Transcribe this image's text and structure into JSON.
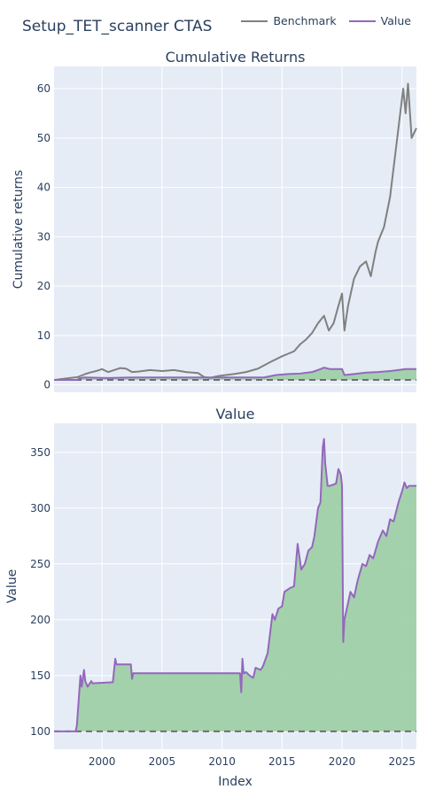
{
  "title": "Setup_TET_scanner CTAS",
  "legend": [
    {
      "name": "Benchmark",
      "color": "#808080"
    },
    {
      "name": "Value",
      "color": "#9467bd"
    }
  ],
  "colors": {
    "plot_bg": "#e5ecf6",
    "grid": "#ffffff",
    "fill": "#9fd0a6",
    "dash": "#6e6e6e"
  },
  "chart_data": [
    {
      "type": "line",
      "title": "Cumulative Returns",
      "xlabel": "",
      "ylabel": "Cumulative returns",
      "xlim": [
        1996,
        2026.2
      ],
      "ylim": [
        -1.5,
        64.5
      ],
      "yticks": [
        0,
        10,
        20,
        30,
        40,
        50,
        60
      ],
      "xticks": [
        2000,
        2005,
        2010,
        2015,
        2020,
        2025
      ],
      "baseline": 1,
      "series": [
        {
          "name": "Benchmark",
          "color": "#808080",
          "x": [
            1996,
            1997,
            1998,
            1998.6,
            1999,
            1999.5,
            2000,
            2000.5,
            2001,
            2001.5,
            2002,
            2002.5,
            2003,
            2004,
            2005,
            2006,
            2007,
            2008,
            2008.5,
            2009,
            2009.5,
            2010,
            2011,
            2012,
            2013,
            2014,
            2015,
            2015.5,
            2016,
            2016.5,
            2017,
            2017.5,
            2018,
            2018.5,
            2018.9,
            2019.3,
            2019.7,
            2020.0,
            2020.2,
            2020.5,
            2021,
            2021.5,
            2022,
            2022.4,
            2022.8,
            2023,
            2023.5,
            2024,
            2024.3,
            2024.6,
            2024.9,
            2025.1,
            2025.3,
            2025.5,
            2025.8,
            2026.2
          ],
          "values": [
            1.0,
            1.3,
            1.6,
            2.2,
            2.5,
            2.8,
            3.2,
            2.6,
            3.0,
            3.4,
            3.3,
            2.6,
            2.7,
            3.0,
            2.8,
            3.0,
            2.6,
            2.4,
            1.6,
            1.4,
            1.7,
            1.9,
            2.2,
            2.6,
            3.3,
            4.6,
            5.8,
            6.3,
            6.8,
            8.2,
            9.2,
            10.5,
            12.5,
            14.0,
            11.0,
            12.5,
            16.0,
            18.5,
            11.0,
            16.0,
            21.5,
            24.0,
            25.0,
            22.0,
            27.0,
            29.0,
            32.0,
            38.0,
            44.0,
            50.0,
            56.0,
            60.0,
            55.0,
            61.0,
            50.0,
            52.0
          ]
        },
        {
          "name": "Value",
          "color": "#9467bd",
          "x": [
            1996,
            1997.9,
            1998.1,
            1998.5,
            2000.5,
            2002.5,
            2011.5,
            2013.5,
            2014.5,
            2015.5,
            2016.5,
            2017.5,
            2018.2,
            2018.5,
            2019,
            2020.0,
            2020.2,
            2021,
            2022,
            2023,
            2024,
            2024.7,
            2025.3,
            2026.2
          ],
          "values": [
            1.0,
            1.0,
            1.3,
            1.5,
            1.4,
            1.5,
            1.5,
            1.5,
            2.0,
            2.2,
            2.3,
            2.6,
            3.2,
            3.5,
            3.2,
            3.2,
            2.0,
            2.2,
            2.5,
            2.6,
            2.8,
            3.0,
            3.2,
            3.2
          ]
        }
      ]
    },
    {
      "type": "area",
      "title": "Value",
      "xlabel": "Index",
      "ylabel": "Value",
      "xlim": [
        1996,
        2026.2
      ],
      "ylim": [
        84,
        376
      ],
      "yticks": [
        100,
        150,
        200,
        250,
        300,
        350
      ],
      "xticks": [
        2000,
        2005,
        2010,
        2015,
        2020,
        2025
      ],
      "baseline": 100,
      "series": [
        {
          "name": "Value",
          "color": "#9467bd",
          "x": [
            1996,
            1997.8,
            1997.9,
            1998.0,
            1998.2,
            1998.3,
            1998.5,
            1998.6,
            1998.8,
            1999.1,
            1999.2,
            2000.9,
            2001.1,
            2001.2,
            2002.4,
            2002.5,
            2002.6,
            2011.5,
            2011.6,
            2011.7,
            2011.8,
            2012.0,
            2012.3,
            2012.6,
            2012.8,
            2013.2,
            2013.4,
            2013.8,
            2014.2,
            2014.4,
            2014.7,
            2015.0,
            2015.2,
            2015.6,
            2016.0,
            2016.3,
            2016.6,
            2016.9,
            2017.2,
            2017.5,
            2017.7,
            2018.0,
            2018.2,
            2018.4,
            2018.5,
            2018.6,
            2018.8,
            2019.0,
            2019.5,
            2019.7,
            2019.9,
            2020.0,
            2020.1,
            2020.2,
            2020.5,
            2020.7,
            2021.0,
            2021.3,
            2021.7,
            2022.0,
            2022.3,
            2022.6,
            2023.0,
            2023.4,
            2023.7,
            2024.0,
            2024.3,
            2024.7,
            2025.0,
            2025.2,
            2025.4,
            2025.6,
            2026.2
          ],
          "values": [
            100,
            100,
            105,
            120,
            150,
            140,
            155,
            145,
            140,
            145,
            143,
            144,
            165,
            160,
            160,
            147,
            152,
            152,
            135,
            165,
            152,
            153,
            150,
            148,
            157,
            155,
            158,
            170,
            205,
            200,
            210,
            212,
            225,
            228,
            230,
            268,
            245,
            250,
            262,
            265,
            275,
            300,
            305,
            355,
            362,
            340,
            320,
            320,
            322,
            335,
            330,
            320,
            180,
            200,
            215,
            225,
            220,
            235,
            250,
            248,
            258,
            255,
            270,
            280,
            275,
            290,
            288,
            305,
            315,
            323,
            318,
            320,
            320
          ]
        }
      ]
    }
  ]
}
